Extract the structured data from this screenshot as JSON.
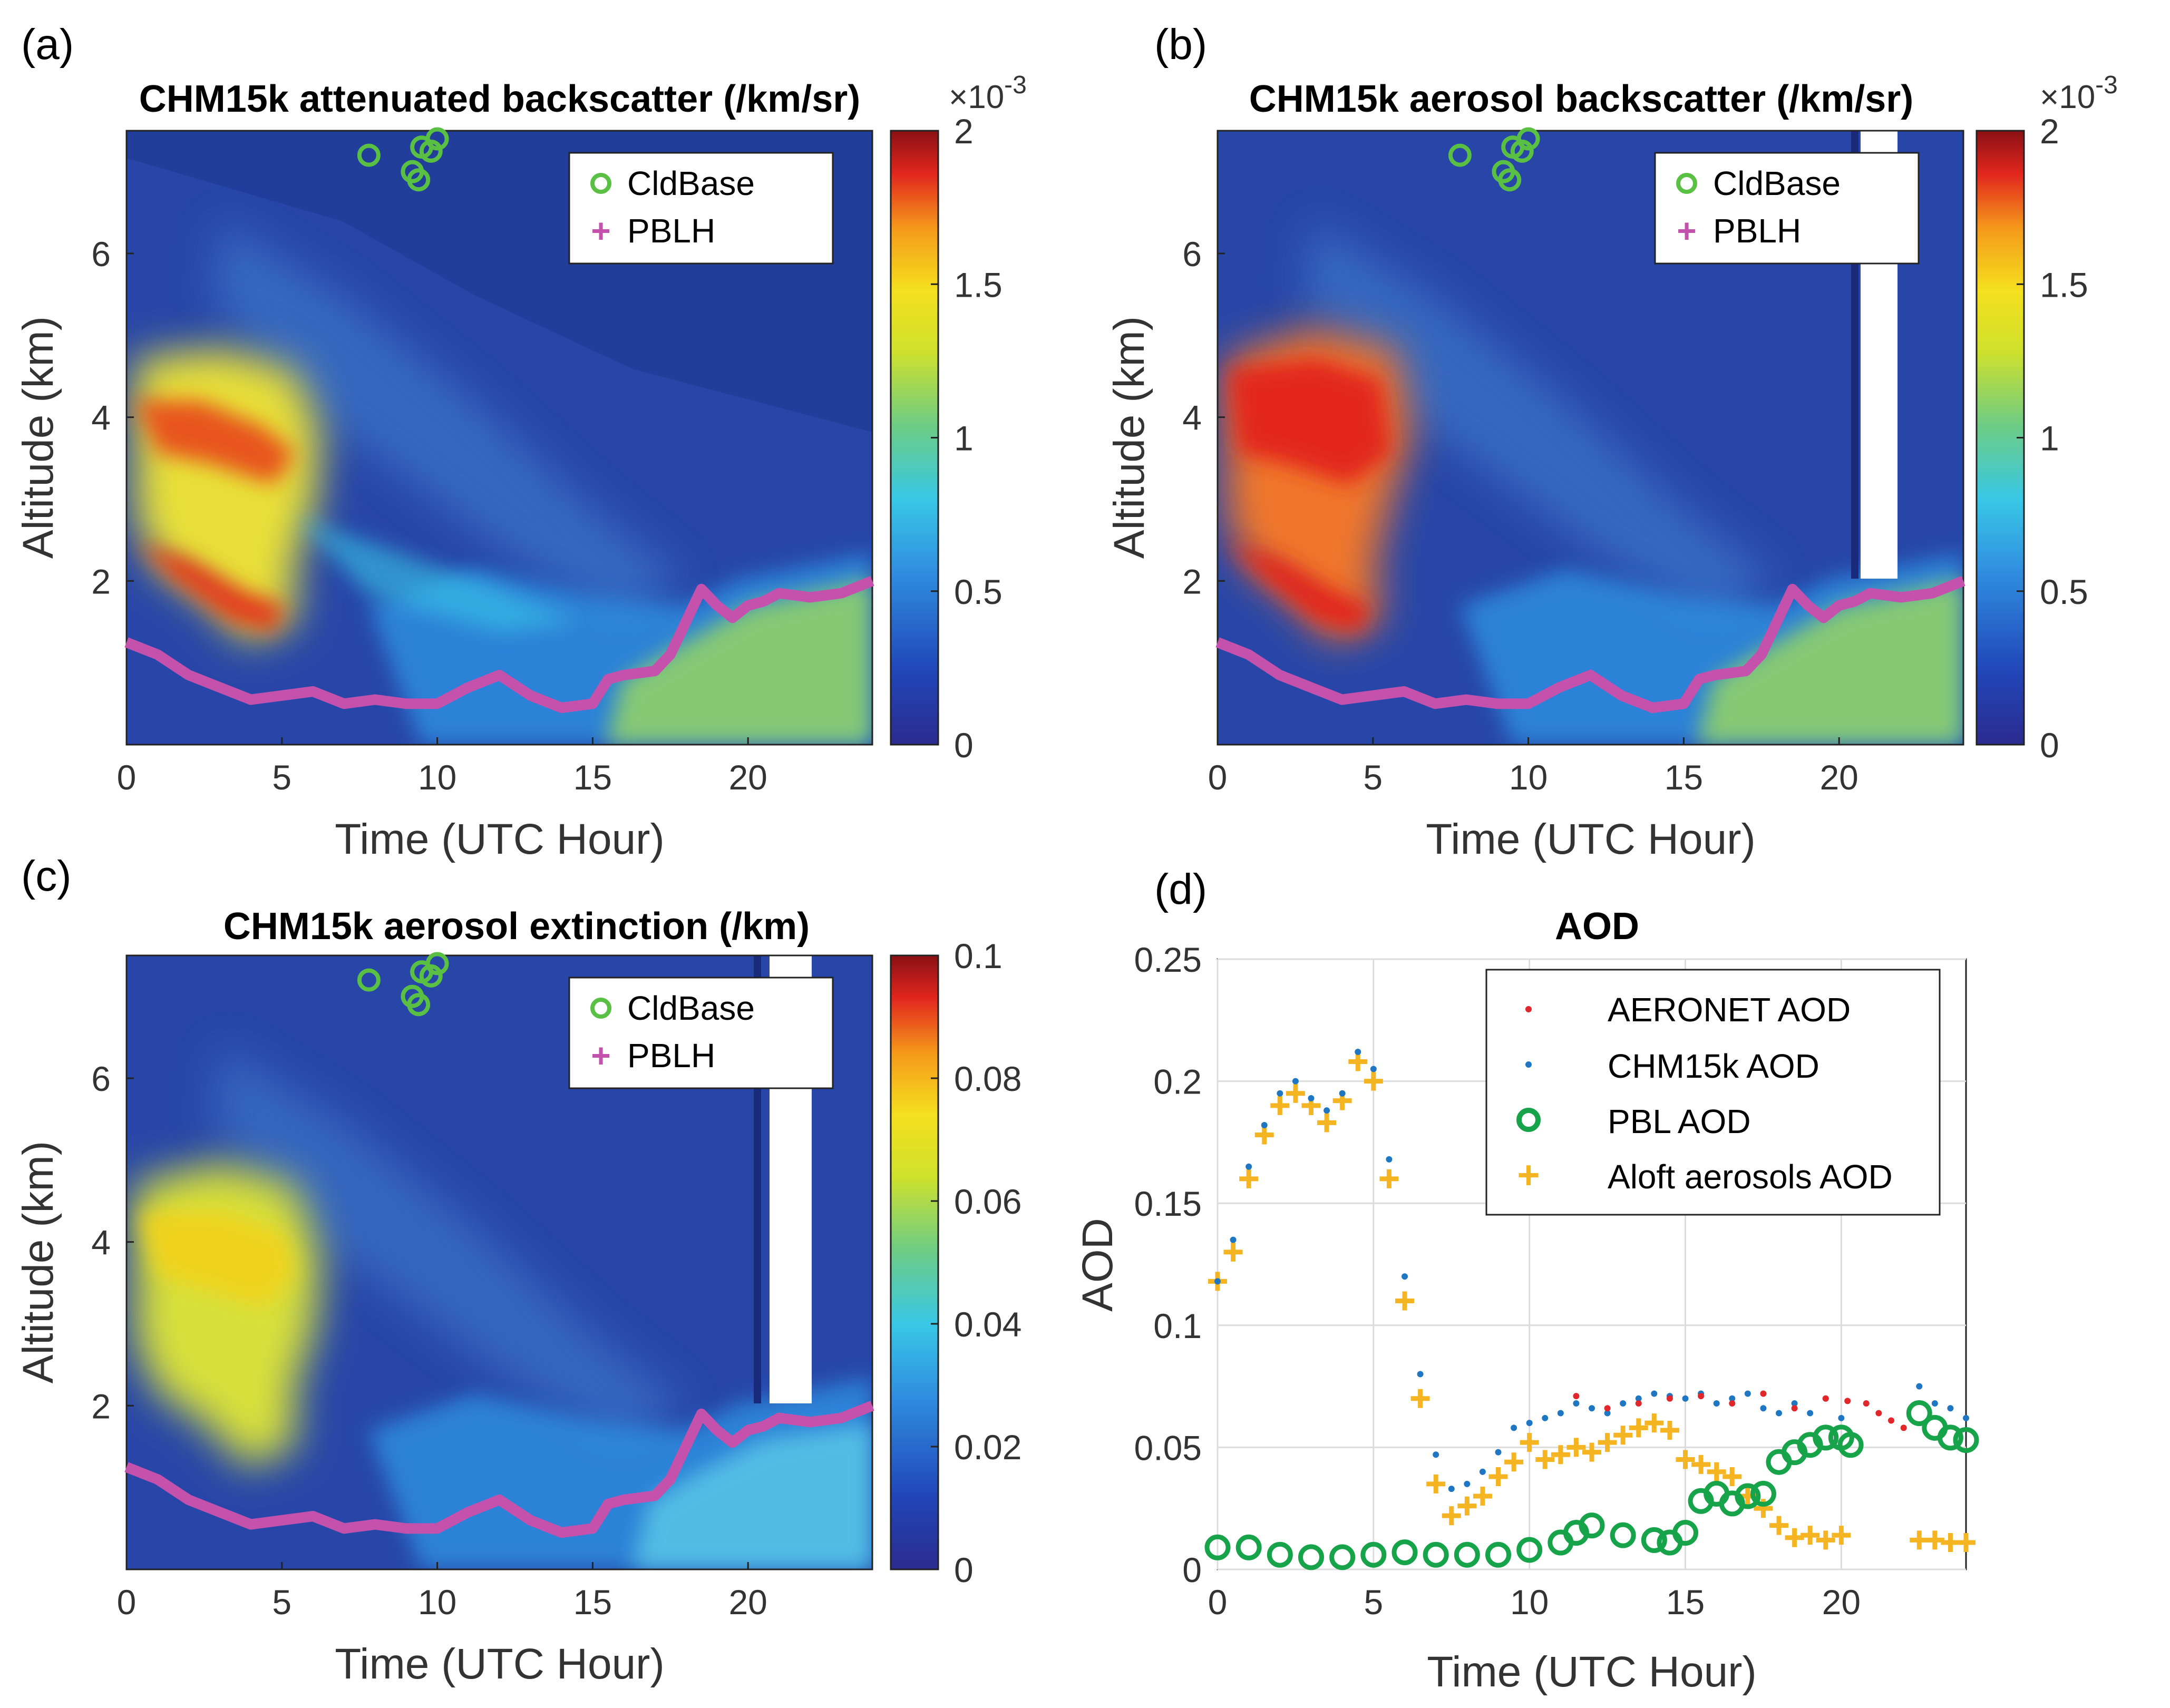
{
  "colors": {
    "cld": "#59c043",
    "pblh": "#c452ac",
    "aeronet": "#e1262c",
    "chm": "#1f77c4",
    "pbl_aod": "#17a34a",
    "aloft": "#f5b523",
    "bg": "#2746a8"
  },
  "panels": [
    {
      "label": "(a)",
      "title": "CHM15k attenuated backscatter (/km/sr)",
      "multiplier": "×10",
      "exponent": "-3",
      "xlabel": "Time (UTC Hour)",
      "ylabel": "Altitude (km)",
      "xticks": [
        "0",
        "5",
        "10",
        "15",
        "20"
      ],
      "yticks": [
        "2",
        "4",
        "6"
      ],
      "cticks": [
        "0",
        "0.5",
        "1",
        "1.5",
        "2"
      ],
      "legend": [
        "CldBase",
        "PBLH"
      ]
    },
    {
      "label": "(b)",
      "title": "CHM15k aerosol backscatter (/km/sr)",
      "multiplier": "×10",
      "exponent": "-3",
      "xlabel": "Time (UTC Hour)",
      "ylabel": "Altitude (km)",
      "xticks": [
        "0",
        "5",
        "10",
        "15",
        "20"
      ],
      "yticks": [
        "2",
        "4",
        "6"
      ],
      "cticks": [
        "0",
        "0.5",
        "1",
        "1.5",
        "2"
      ],
      "legend": [
        "CldBase",
        "PBLH"
      ]
    },
    {
      "label": "(c)",
      "title": "CHM15k aerosol extinction (/km)",
      "xlabel": "Time (UTC Hour)",
      "ylabel": "Altitude (km)",
      "xticks": [
        "0",
        "5",
        "10",
        "15",
        "20"
      ],
      "yticks": [
        "2",
        "4",
        "6"
      ],
      "cticks": [
        "0",
        "0.02",
        "0.04",
        "0.06",
        "0.08",
        "0.1"
      ],
      "legend": [
        "CldBase",
        "PBLH"
      ]
    },
    {
      "label": "(d)",
      "title": "AOD",
      "xlabel": "Time (UTC Hour)",
      "ylabel": "AOD",
      "xticks": [
        "0",
        "5",
        "10",
        "15",
        "20"
      ],
      "yticks": [
        "0",
        "0.05",
        "0.1",
        "0.15",
        "0.2",
        "0.25"
      ],
      "legend": [
        "AERONET AOD",
        "CHM15k AOD",
        "PBL AOD",
        "Aloft aerosols AOD"
      ]
    }
  ],
  "chart_data": [
    {
      "type": "heatmap",
      "panel": "a",
      "title": "CHM15k attenuated backscatter (/km/sr)",
      "xlabel": "Time (UTC Hour)",
      "ylabel": "Altitude (km)",
      "xlim": [
        0,
        24
      ],
      "ylim": [
        0,
        7.5
      ],
      "clim": [
        0,
        2
      ],
      "cunits": "x10^-3",
      "pblh": {
        "x": [
          0,
          1,
          2,
          3,
          4,
          5,
          6,
          7,
          8,
          9,
          10,
          11,
          12,
          13,
          14,
          15,
          15.5,
          16,
          17,
          17.5,
          18,
          18.5,
          19,
          19.5,
          20,
          20.5,
          21,
          22,
          23,
          24
        ],
        "y": [
          1.25,
          1.1,
          0.85,
          0.7,
          0.55,
          0.6,
          0.65,
          0.5,
          0.55,
          0.5,
          0.5,
          0.7,
          0.85,
          0.6,
          0.45,
          0.5,
          0.8,
          0.85,
          0.9,
          1.1,
          1.5,
          1.9,
          1.7,
          1.55,
          1.7,
          1.75,
          1.85,
          1.8,
          1.85,
          2.0
        ]
      },
      "cldbase": {
        "x": [
          7.8,
          9.2,
          9.4,
          9.5,
          9.8,
          10.0
        ],
        "y": [
          7.2,
          7.0,
          6.9,
          7.3,
          7.25,
          7.4
        ]
      }
    },
    {
      "type": "heatmap",
      "panel": "b",
      "title": "CHM15k aerosol backscatter (/km/sr)",
      "xlabel": "Time (UTC Hour)",
      "ylabel": "Altitude (km)",
      "xlim": [
        0,
        24
      ],
      "ylim": [
        0,
        7.5
      ],
      "clim": [
        0,
        2
      ],
      "cunits": "x10^-3",
      "pblh": {
        "x": [
          0,
          1,
          2,
          3,
          4,
          5,
          6,
          7,
          8,
          9,
          10,
          11,
          12,
          13,
          14,
          15,
          15.5,
          16,
          17,
          17.5,
          18,
          18.5,
          19,
          19.5,
          20,
          20.5,
          21,
          22,
          23,
          24
        ],
        "y": [
          1.25,
          1.1,
          0.85,
          0.7,
          0.55,
          0.6,
          0.65,
          0.5,
          0.55,
          0.5,
          0.5,
          0.7,
          0.85,
          0.6,
          0.45,
          0.5,
          0.8,
          0.85,
          0.9,
          1.1,
          1.5,
          1.9,
          1.7,
          1.55,
          1.7,
          1.75,
          1.85,
          1.8,
          1.85,
          2.0
        ]
      },
      "cldbase": {
        "x": [
          7.8,
          9.2,
          9.4,
          9.5,
          9.8,
          10.0
        ],
        "y": [
          7.2,
          7.0,
          6.9,
          7.3,
          7.25,
          7.4
        ]
      }
    },
    {
      "type": "heatmap",
      "panel": "c",
      "title": "CHM15k aerosol extinction (/km)",
      "xlabel": "Time (UTC Hour)",
      "ylabel": "Altitude (km)",
      "xlim": [
        0,
        24
      ],
      "ylim": [
        0,
        7.5
      ],
      "clim": [
        0,
        0.1
      ],
      "pblh": {
        "x": [
          0,
          1,
          2,
          3,
          4,
          5,
          6,
          7,
          8,
          9,
          10,
          11,
          12,
          13,
          14,
          15,
          15.5,
          16,
          17,
          17.5,
          18,
          18.5,
          19,
          19.5,
          20,
          20.5,
          21,
          22,
          23,
          24
        ],
        "y": [
          1.25,
          1.1,
          0.85,
          0.7,
          0.55,
          0.6,
          0.65,
          0.5,
          0.55,
          0.5,
          0.5,
          0.7,
          0.85,
          0.6,
          0.45,
          0.5,
          0.8,
          0.85,
          0.9,
          1.1,
          1.5,
          1.9,
          1.7,
          1.55,
          1.7,
          1.75,
          1.85,
          1.8,
          1.85,
          2.0
        ]
      },
      "cldbase": {
        "x": [
          7.8,
          9.2,
          9.4,
          9.5,
          9.8,
          10.0
        ],
        "y": [
          7.2,
          7.0,
          6.9,
          7.3,
          7.25,
          7.4
        ]
      }
    },
    {
      "type": "scatter",
      "panel": "d",
      "title": "AOD",
      "xlabel": "Time (UTC Hour)",
      "ylabel": "AOD",
      "xlim": [
        0,
        24
      ],
      "ylim": [
        0,
        0.25
      ],
      "grid": true,
      "legend_position": "top-right",
      "series": [
        {
          "name": "AERONET AOD",
          "x": [
            11.5,
            12.5,
            13.5,
            14.5,
            15.5,
            16.5,
            17.5,
            18.5,
            19.5,
            20.2,
            20.8,
            21.2,
            21.6,
            22.0
          ],
          "y": [
            0.071,
            0.066,
            0.068,
            0.07,
            0.071,
            0.068,
            0.072,
            0.066,
            0.07,
            0.069,
            0.068,
            0.064,
            0.061,
            0.058
          ]
        },
        {
          "name": "CHM15k AOD",
          "x": [
            0,
            0.5,
            1,
            1.5,
            2,
            2.5,
            3,
            3.5,
            4,
            4.5,
            5,
            5.5,
            6,
            6.5,
            7,
            7.5,
            8,
            8.5,
            9,
            9.5,
            10,
            10.5,
            11,
            11.5,
            12,
            12.5,
            13,
            13.5,
            14,
            14.5,
            15,
            15.5,
            16,
            16.5,
            17,
            17.5,
            18,
            18.5,
            19,
            19.5,
            20,
            22.5,
            23,
            23.5,
            24
          ],
          "y": [
            0.118,
            0.135,
            0.165,
            0.182,
            0.195,
            0.2,
            0.193,
            0.188,
            0.195,
            0.212,
            0.205,
            0.168,
            0.12,
            0.08,
            0.047,
            0.033,
            0.035,
            0.04,
            0.048,
            0.058,
            0.06,
            0.062,
            0.064,
            0.068,
            0.066,
            0.064,
            0.068,
            0.07,
            0.072,
            0.071,
            0.07,
            0.072,
            0.068,
            0.07,
            0.072,
            0.066,
            0.064,
            0.068,
            0.064,
            0.07,
            0.062,
            0.075,
            0.068,
            0.066,
            0.062
          ]
        },
        {
          "name": "PBL AOD",
          "x": [
            0,
            1,
            2,
            3,
            4,
            5,
            6,
            7,
            8,
            9,
            10,
            11,
            11.5,
            12,
            13,
            14,
            14.5,
            15,
            15.5,
            16,
            16.5,
            17,
            17.5,
            18,
            18.5,
            19,
            19.5,
            20,
            20.3,
            22.5,
            23,
            23.5,
            24
          ],
          "y": [
            0.009,
            0.009,
            0.006,
            0.005,
            0.005,
            0.006,
            0.007,
            0.006,
            0.006,
            0.006,
            0.008,
            0.011,
            0.015,
            0.018,
            0.014,
            0.012,
            0.011,
            0.015,
            0.028,
            0.031,
            0.027,
            0.03,
            0.031,
            0.044,
            0.048,
            0.051,
            0.054,
            0.054,
            0.051,
            0.064,
            0.058,
            0.054,
            0.053
          ]
        },
        {
          "name": "Aloft aerosols AOD",
          "x": [
            0,
            0.5,
            1,
            1.5,
            2,
            2.5,
            3,
            3.5,
            4,
            4.5,
            5,
            5.5,
            6,
            6.5,
            7,
            7.5,
            8,
            8.5,
            9,
            9.5,
            10,
            10.5,
            11,
            11.5,
            12,
            12.5,
            13,
            13.5,
            14,
            14.5,
            15,
            15.5,
            16,
            16.5,
            17,
            17.5,
            18,
            18.5,
            19,
            19.5,
            20,
            22.5,
            23,
            23.5,
            24
          ],
          "y": [
            0.118,
            0.13,
            0.16,
            0.178,
            0.19,
            0.195,
            0.19,
            0.183,
            0.192,
            0.208,
            0.2,
            0.16,
            0.11,
            0.07,
            0.035,
            0.022,
            0.026,
            0.03,
            0.038,
            0.044,
            0.052,
            0.045,
            0.047,
            0.05,
            0.048,
            0.052,
            0.055,
            0.058,
            0.06,
            0.057,
            0.045,
            0.043,
            0.04,
            0.038,
            0.03,
            0.025,
            0.018,
            0.013,
            0.014,
            0.012,
            0.014,
            0.012,
            0.012,
            0.011,
            0.011
          ]
        }
      ]
    }
  ]
}
